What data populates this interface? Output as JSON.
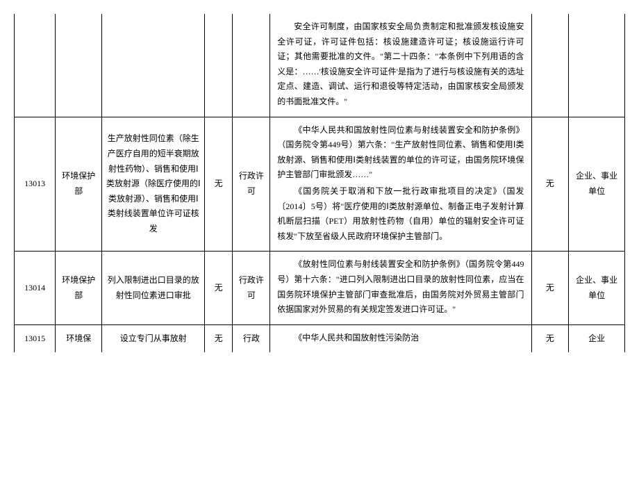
{
  "rows": [
    {
      "id": "",
      "dept": "",
      "item": "",
      "sub": "",
      "type": "",
      "basis_paragraphs": [
        "安全许可制度，由国家核安全局负责制定和批准颁发核设施安全许可证，许可证件包括：核设施建造许可证；核设施运行许可证；其他需要批准的文件。\"第二十四条：\"本条例中下列用语的含义是：……'核设施安全许可证件'是指为了进行与核设施有关的选址定点、建造、调试、运行和退役等特定活动，由国家核安全局颁发的书面批准文件。\""
      ],
      "other": "",
      "target": "",
      "continuation": true
    },
    {
      "id": "13013",
      "dept": "环境保护部",
      "item": "生产放射性同位素（除生产医疗自用的短半衰期放射性药物）、销售和使用Ⅰ类放射源（除医疗使用的Ⅰ类放射源）、销售和使用Ⅰ类射线装置单位许可证核发",
      "sub": "无",
      "type": "行政许可",
      "basis_paragraphs": [
        "《中华人民共和国放射性同位素与射线装置安全和防护条例》（国务院令第449号）第六条：\"生产放射性同位素、销售和使用Ⅰ类放射源、销售和使用Ⅰ类射线装置的单位的许可证，由国务院环境保护主管部门审批颁发……\"",
        "《国务院关于取消和下放一批行政审批项目的决定》（国发〔2014〕5号）将\"医疗使用的Ⅰ类放射源单位、制备正电子发射计算机断层扫描（PET）用放射性药物（自用）单位的辐射安全许可证核发\"下放至省级人民政府环境保护主管部门。"
      ],
      "other": "无",
      "target": "企业、事业单位",
      "continuation": false
    },
    {
      "id": "13014",
      "dept": "环境保护部",
      "item": "列入限制进出口目录的放射性同位素进口审批",
      "sub": "无",
      "type": "行政许可",
      "basis_paragraphs": [
        "《放射性同位素与射线装置安全和防护条例》（国务院令第449号）第十六条：\"进口列入限制进出口目录的放射性同位素，应当在国务院环境保护主管部门审查批准后，由国务院对外贸易主管部门依据国家对外贸易的有关规定签发进口许可证。\""
      ],
      "other": "无",
      "target": "企业、事业单位",
      "continuation": false
    },
    {
      "id": "13015",
      "dept": "环境保",
      "item": "设立专门从事放射",
      "sub": "无",
      "type": "行政",
      "basis_paragraphs": [
        "《中华人民共和国放射性污染防治"
      ],
      "other": "无",
      "target": "企业",
      "continuation": false,
      "partial": true
    }
  ]
}
